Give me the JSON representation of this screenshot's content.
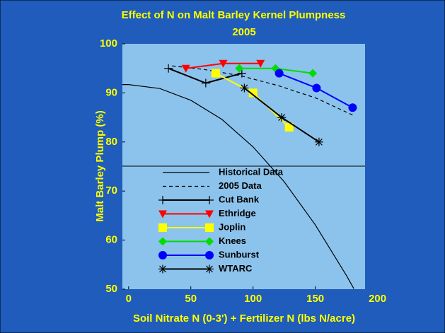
{
  "chart_data": {
    "type": "line",
    "title": "Effect of N on Malt Barley Kernel Plumpness",
    "subtitle": "2005",
    "x_label": "Soil Nitrate N (0-3') + Fertilizer N (lbs N/acre)",
    "y_label": "Malt Barley Plump (%)",
    "xlim": [
      -5,
      190
    ],
    "ylim": [
      50,
      100
    ],
    "xticks": [
      0,
      50,
      100,
      150,
      200
    ],
    "yticks": [
      50,
      60,
      70,
      80,
      90,
      100
    ],
    "series": [
      {
        "name": "Historical Data",
        "color": "#000000",
        "dash": false,
        "marker": null,
        "x": [
          -5,
          0,
          25,
          50,
          75,
          100,
          125,
          150,
          175,
          181
        ],
        "values": [
          91.7,
          91.7,
          90.9,
          88.5,
          84.6,
          79.0,
          71.9,
          63.1,
          52.8,
          50.1
        ]
      },
      {
        "name": "2005 Data",
        "color": "#000000",
        "dash": true,
        "marker": null,
        "x": [
          35,
          60,
          90,
          120,
          150,
          180
        ],
        "values": [
          95.5,
          94.8,
          93.5,
          91.5,
          89,
          85.5
        ]
      },
      {
        "name": "Cut Bank",
        "color": "#000000",
        "dash": false,
        "marker": "plus",
        "x": [
          32,
          62,
          91
        ],
        "values": [
          95,
          92,
          94
        ]
      },
      {
        "name": "Ethridge",
        "color": "#ff0000",
        "dash": false,
        "marker": "triangle-down",
        "x": [
          46,
          76,
          106
        ],
        "values": [
          95,
          96,
          96
        ]
      },
      {
        "name": "Joplin",
        "color": "#ffff00",
        "dash": false,
        "marker": "square",
        "x": [
          70,
          100,
          129
        ],
        "values": [
          94,
          90,
          83
        ]
      },
      {
        "name": "Knees",
        "color": "#00dd00",
        "dash": false,
        "marker": "diamond",
        "x": [
          89,
          118,
          148
        ],
        "values": [
          95,
          95,
          94
        ]
      },
      {
        "name": "Sunburst",
        "color": "#0000ff",
        "dash": false,
        "marker": "circle",
        "x": [
          121,
          151,
          180
        ],
        "values": [
          94,
          91,
          87
        ]
      },
      {
        "name": "WTARC",
        "color": "#000000",
        "dash": false,
        "marker": "star",
        "x": [
          93,
          123,
          153
        ],
        "values": [
          91,
          85,
          80
        ]
      }
    ]
  }
}
